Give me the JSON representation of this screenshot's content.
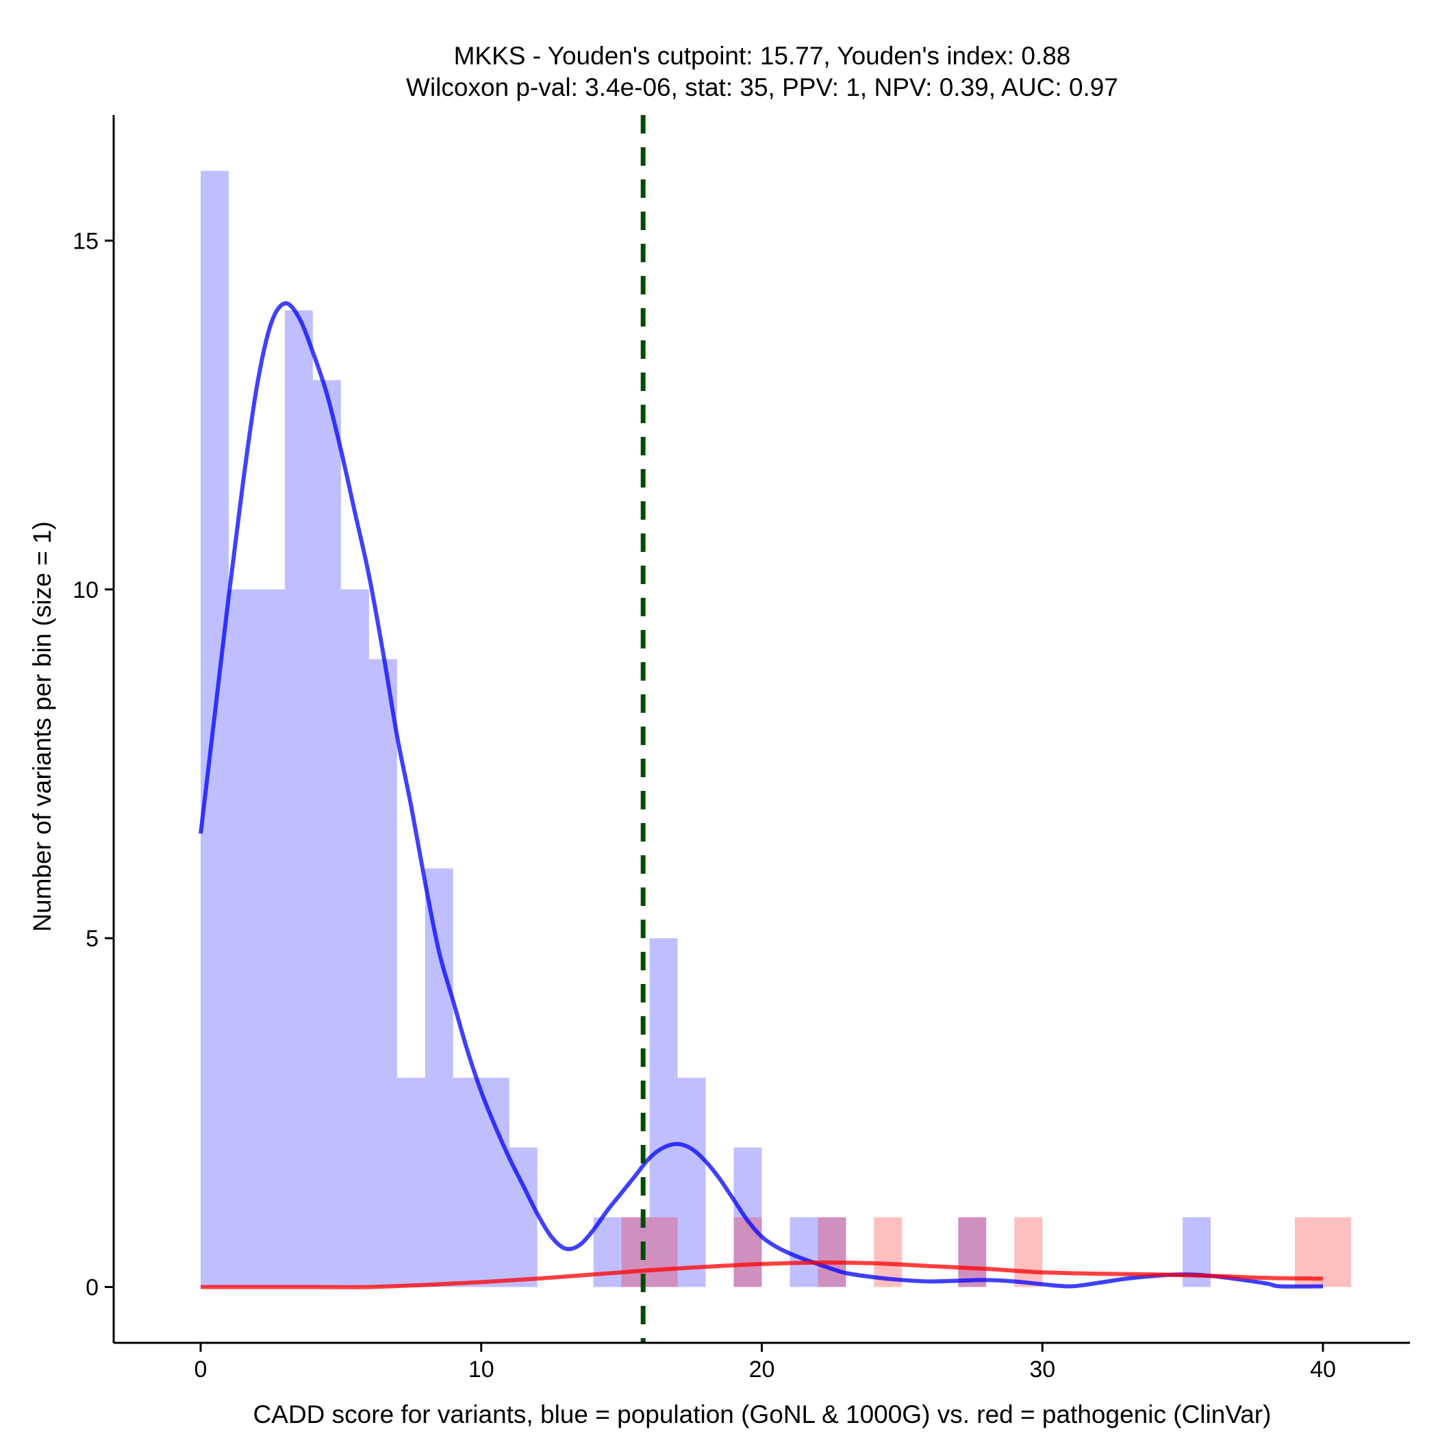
{
  "chart_data": {
    "type": "bar",
    "title_line1": "MKKS - Youden's cutpoint: 15.77, Youden's index: 0.88",
    "title_line2": "Wilcoxon p-val: 3.4e-06, stat: 35, PPV: 1, NPV: 0.39, AUC: 0.97",
    "xlabel": "CADD score for variants, blue = population (GoNL & 1000G) vs. red = pathogenic (ClinVar)",
    "ylabel": "Number of variants per bin (size = 1)",
    "xlim": [
      -3.1,
      43.1
    ],
    "ylim": [
      -0.8,
      16.8
    ],
    "xticks": [
      0,
      10,
      20,
      30,
      40
    ],
    "yticks": [
      0,
      5,
      10,
      15
    ],
    "cutpoint": 15.77,
    "bin_width": 1,
    "colors": {
      "population": "#0000ff",
      "pathogenic": "#ff0000",
      "cutpoint_line": "#004d00"
    },
    "series": [
      {
        "key": "population",
        "bins": [
          {
            "x0": 0,
            "count": 16
          },
          {
            "x0": 1,
            "count": 10
          },
          {
            "x0": 2,
            "count": 10
          },
          {
            "x0": 3,
            "count": 14
          },
          {
            "x0": 4,
            "count": 13
          },
          {
            "x0": 5,
            "count": 10
          },
          {
            "x0": 6,
            "count": 9
          },
          {
            "x0": 7,
            "count": 3
          },
          {
            "x0": 8,
            "count": 6
          },
          {
            "x0": 9,
            "count": 3
          },
          {
            "x0": 10,
            "count": 3
          },
          {
            "x0": 11,
            "count": 2
          },
          {
            "x0": 14,
            "count": 1
          },
          {
            "x0": 15,
            "count": 1
          },
          {
            "x0": 16,
            "count": 5
          },
          {
            "x0": 17,
            "count": 3
          },
          {
            "x0": 19,
            "count": 2
          },
          {
            "x0": 21,
            "count": 1
          },
          {
            "x0": 22,
            "count": 1
          },
          {
            "x0": 27,
            "count": 1
          },
          {
            "x0": 35,
            "count": 1
          }
        ],
        "density": [
          [
            0,
            6.5
          ],
          [
            0.5,
            8.2
          ],
          [
            1,
            9.9
          ],
          [
            1.5,
            11.5
          ],
          [
            2,
            12.9
          ],
          [
            2.5,
            13.8
          ],
          [
            3,
            14.1
          ],
          [
            3.5,
            13.9
          ],
          [
            4,
            13.4
          ],
          [
            4.5,
            12.8
          ],
          [
            5,
            12.0
          ],
          [
            5.5,
            11.1
          ],
          [
            6,
            10.2
          ],
          [
            6.5,
            9.1
          ],
          [
            7,
            7.9
          ],
          [
            7.5,
            6.9
          ],
          [
            8,
            5.8
          ],
          [
            8.5,
            4.8
          ],
          [
            9,
            4.1
          ],
          [
            9.5,
            3.4
          ],
          [
            10,
            2.8
          ],
          [
            10.5,
            2.3
          ],
          [
            11,
            1.85
          ],
          [
            11.5,
            1.45
          ],
          [
            12,
            1.05
          ],
          [
            12.5,
            0.72
          ],
          [
            13,
            0.55
          ],
          [
            13.5,
            0.6
          ],
          [
            14,
            0.82
          ],
          [
            14.5,
            1.1
          ],
          [
            15,
            1.35
          ],
          [
            15.5,
            1.6
          ],
          [
            16,
            1.85
          ],
          [
            16.5,
            2.0
          ],
          [
            17,
            2.05
          ],
          [
            17.5,
            1.98
          ],
          [
            18,
            1.8
          ],
          [
            18.5,
            1.55
          ],
          [
            19,
            1.25
          ],
          [
            19.5,
            0.95
          ],
          [
            20,
            0.72
          ],
          [
            20.5,
            0.58
          ],
          [
            21,
            0.48
          ],
          [
            21.5,
            0.4
          ],
          [
            22,
            0.33
          ],
          [
            22.5,
            0.26
          ],
          [
            23,
            0.2
          ],
          [
            24,
            0.14
          ],
          [
            25,
            0.1
          ],
          [
            26,
            0.08
          ],
          [
            27,
            0.09
          ],
          [
            28,
            0.1
          ],
          [
            29,
            0.08
          ],
          [
            30,
            0.04
          ],
          [
            31,
            0.01
          ],
          [
            32,
            0.06
          ],
          [
            33,
            0.12
          ],
          [
            34,
            0.16
          ],
          [
            35,
            0.18
          ],
          [
            36,
            0.16
          ],
          [
            37,
            0.11
          ],
          [
            38,
            0.05
          ],
          [
            38.5,
            0.01
          ],
          [
            40,
            0.01
          ]
        ]
      },
      {
        "key": "pathogenic",
        "bins": [
          {
            "x0": 15,
            "count": 1
          },
          {
            "x0": 16,
            "count": 1
          },
          {
            "x0": 19,
            "count": 1
          },
          {
            "x0": 22,
            "count": 1
          },
          {
            "x0": 24,
            "count": 1
          },
          {
            "x0": 27,
            "count": 1
          },
          {
            "x0": 29,
            "count": 1
          },
          {
            "x0": 39,
            "count": 1
          },
          {
            "x0": 40,
            "count": 1
          }
        ],
        "density": [
          [
            0,
            0.0
          ],
          [
            2,
            0.0
          ],
          [
            4,
            0.0
          ],
          [
            6,
            0.0
          ],
          [
            8,
            0.03
          ],
          [
            10,
            0.07
          ],
          [
            12,
            0.12
          ],
          [
            14,
            0.18
          ],
          [
            16,
            0.24
          ],
          [
            18,
            0.29
          ],
          [
            20,
            0.33
          ],
          [
            22,
            0.35
          ],
          [
            24,
            0.34
          ],
          [
            26,
            0.3
          ],
          [
            28,
            0.26
          ],
          [
            30,
            0.21
          ],
          [
            32,
            0.19
          ],
          [
            34,
            0.18
          ],
          [
            36,
            0.16
          ],
          [
            38,
            0.13
          ],
          [
            40,
            0.12
          ]
        ]
      }
    ]
  }
}
